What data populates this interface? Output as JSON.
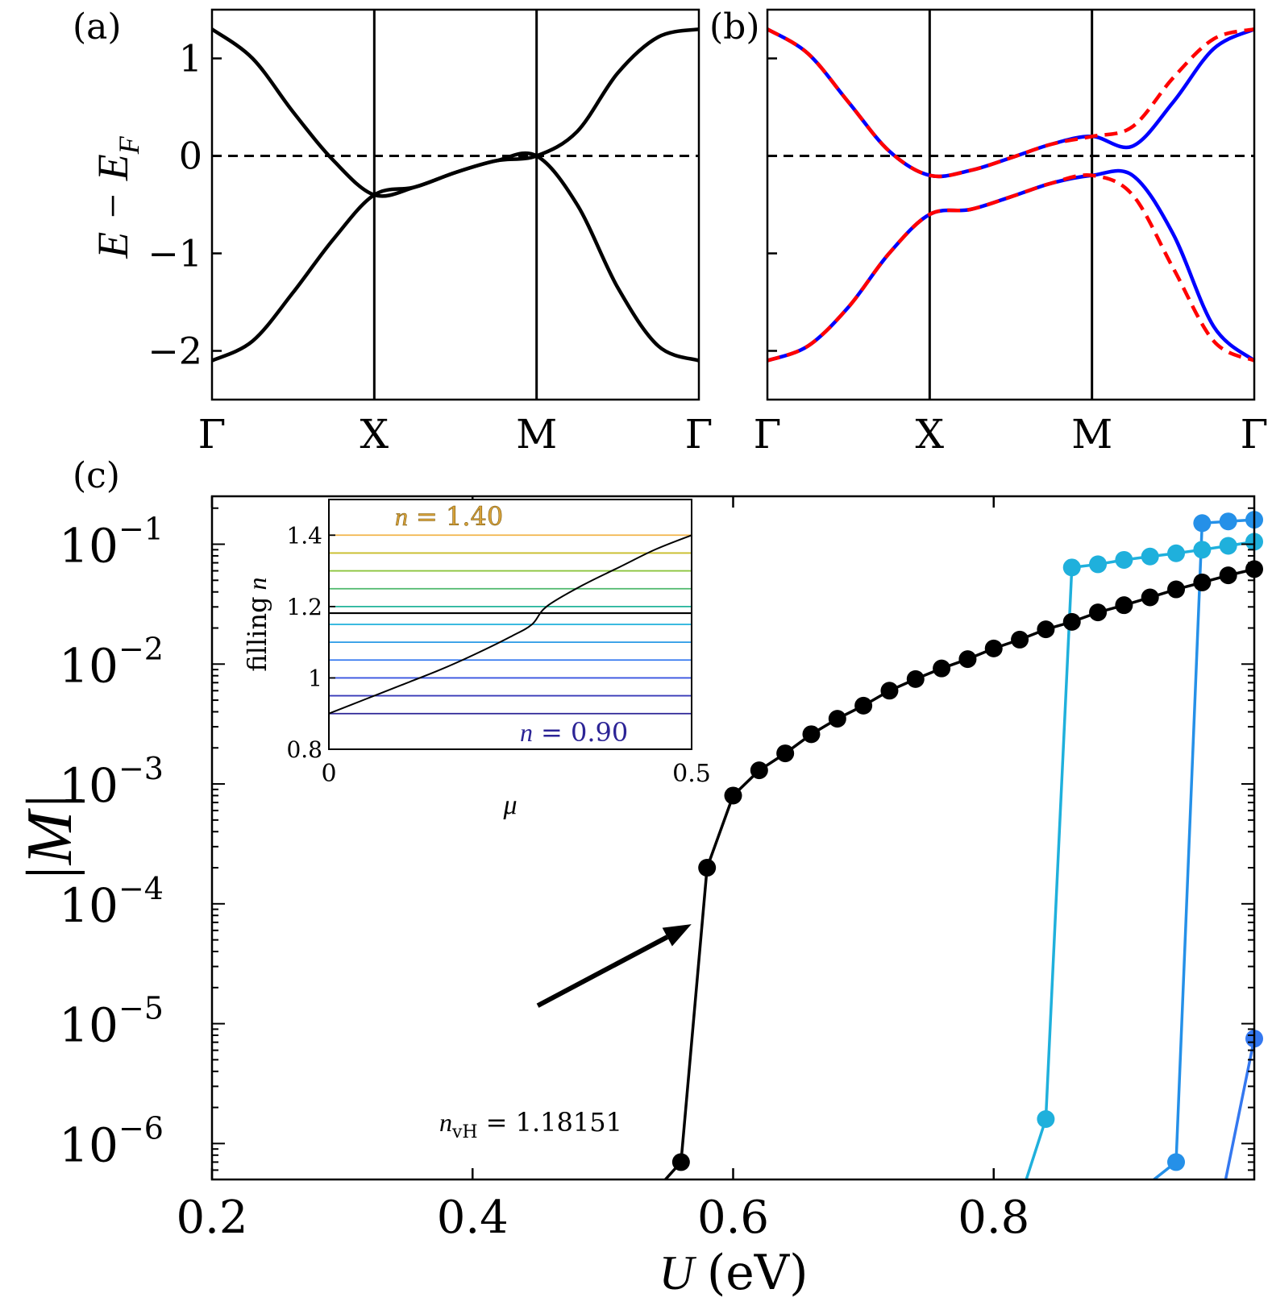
{
  "figure": {
    "panel_labels": [
      "(a)",
      "(b)",
      "(c)"
    ]
  },
  "chart_data": [
    {
      "id": "a",
      "type": "line",
      "ylabel": "E − E_F",
      "ylabel_parts": {
        "main": "E − E",
        "sub": "F"
      },
      "k_labels": [
        "Γ",
        "X",
        "M",
        "Γ"
      ],
      "ylim": [
        -2.5,
        1.5
      ],
      "yticks": [
        1,
        0,
        -1,
        -2
      ],
      "ytick_labels": [
        "1",
        "0",
        "−1",
        "−2"
      ],
      "fermi_level": 0,
      "band_points": {
        "x": [
          0,
          0.25,
          0.5,
          0.75,
          1,
          1.25,
          1.5,
          1.75,
          2,
          2.25,
          2.5,
          2.75,
          3
        ],
        "upper": [
          1.3,
          1.0,
          0.45,
          -0.05,
          -0.4,
          -0.32,
          -0.17,
          -0.05,
          0.0,
          0.25,
          0.85,
          1.22,
          1.3
        ],
        "lower": [
          -2.1,
          -1.9,
          -1.4,
          -0.85,
          -0.4,
          -0.32,
          -0.17,
          -0.05,
          0.0,
          -0.5,
          -1.35,
          -1.95,
          -2.1
        ]
      },
      "series": [
        {
          "color": "#000000",
          "style": "solid"
        }
      ]
    },
    {
      "id": "b",
      "type": "line",
      "k_labels": [
        "Γ",
        "X",
        "M",
        "Γ"
      ],
      "ylim": [
        -2.5,
        1.5
      ],
      "fermi_level": 0,
      "band_points": {
        "x": [
          0,
          0.25,
          0.5,
          0.75,
          1,
          1.25,
          1.5,
          1.75,
          2,
          2.25,
          2.5,
          2.75,
          3
        ],
        "upper_blue": [
          1.3,
          1.05,
          0.55,
          0.05,
          -0.2,
          -0.15,
          -0.02,
          0.12,
          0.2,
          0.1,
          0.55,
          1.1,
          1.3
        ],
        "upper_red": [
          1.3,
          1.05,
          0.55,
          0.05,
          -0.2,
          -0.15,
          -0.02,
          0.12,
          0.2,
          0.3,
          0.8,
          1.2,
          1.3
        ],
        "lower_blue": [
          -2.1,
          -1.95,
          -1.55,
          -1.0,
          -0.6,
          -0.55,
          -0.42,
          -0.28,
          -0.2,
          -0.2,
          -0.8,
          -1.75,
          -2.1
        ],
        "lower_red": [
          -2.1,
          -1.95,
          -1.55,
          -1.0,
          -0.6,
          -0.55,
          -0.42,
          -0.28,
          -0.2,
          -0.4,
          -1.15,
          -1.9,
          -2.1
        ]
      },
      "series": [
        {
          "color": "#0000ff",
          "style": "solid"
        },
        {
          "color": "#ff0000",
          "style": "dashed"
        }
      ]
    },
    {
      "id": "c",
      "type": "scatter",
      "xlabel": "U (eV)",
      "xlabel_parts": {
        "var": "U",
        "unit": "(eV)"
      },
      "ylabel": "|M|",
      "xlim": [
        0.2,
        1.0
      ],
      "ylim_log10": [
        -6.3,
        -0.6
      ],
      "yscale": "log",
      "xticks": [
        0.2,
        0.4,
        0.6,
        0.8
      ],
      "xtick_labels": [
        "0.2",
        "0.4",
        "0.6",
        "0.8"
      ],
      "yticks_log10": [
        -1,
        -2,
        -3,
        -4,
        -5,
        -6
      ],
      "ytick_labels": [
        {
          "base": "10",
          "exp": "−1"
        },
        {
          "base": "10",
          "exp": "−2"
        },
        {
          "base": "10",
          "exp": "−3"
        },
        {
          "base": "10",
          "exp": "−4"
        },
        {
          "base": "10",
          "exp": "−5"
        },
        {
          "base": "10",
          "exp": "−6"
        }
      ],
      "series": [
        {
          "color": "#000000",
          "x": [
            0.54,
            0.56,
            0.58,
            0.6,
            0.62,
            0.64,
            0.66,
            0.68,
            0.7,
            0.72,
            0.74,
            0.76,
            0.78,
            0.8,
            0.82,
            0.84,
            0.86,
            0.88,
            0.9,
            0.92,
            0.94,
            0.96,
            0.98,
            1.0
          ],
          "y": [
            null,
            7e-07,
            0.0002,
            0.0008,
            0.0013,
            0.0018,
            0.0026,
            0.0035,
            0.0045,
            0.006,
            0.0075,
            0.0092,
            0.011,
            0.0135,
            0.016,
            0.0195,
            0.0225,
            0.027,
            0.031,
            0.036,
            0.042,
            0.048,
            0.055,
            0.062
          ],
          "line_from": {
            "x": 0.548,
            "log10y": -6.3
          }
        },
        {
          "color": "#1fb0dc",
          "x": [
            0.84,
            0.86,
            0.88,
            0.9,
            0.92,
            0.94,
            0.96,
            0.98,
            1.0
          ],
          "y": [
            1.6e-06,
            0.064,
            0.068,
            0.074,
            0.079,
            0.084,
            0.09,
            0.097,
            0.105
          ],
          "line_from": {
            "x": 0.825,
            "log10y": -6.3
          }
        },
        {
          "color": "#2590e8",
          "x": [
            0.94,
            0.96,
            0.98,
            1.0
          ],
          "y": [
            7e-07,
            0.15,
            0.155,
            0.16
          ],
          "line_from": {
            "x": 0.923,
            "log10y": -6.3
          }
        },
        {
          "color": "#3478f0",
          "x": [
            1.0
          ],
          "y": [
            7.5e-06
          ],
          "line_from": {
            "x": 0.978,
            "log10y": -6.3
          }
        }
      ],
      "annotation": {
        "text_var": "n",
        "text_sub": "vH",
        "text_value": "= 1.18151",
        "arrow_tail": {
          "x": 0.45,
          "log10y": -4.85
        },
        "arrow_head": {
          "x": 0.568,
          "log10y": -4.17
        }
      },
      "inset": {
        "type": "line",
        "xlabel": "μ",
        "ylabel": "filling n",
        "ylabel_parts": {
          "text": "filling",
          "var": "n"
        },
        "xlim": [
          0,
          0.5
        ],
        "ylim": [
          0.8,
          1.5
        ],
        "xticks": [
          0,
          0.5
        ],
        "xtick_labels": [
          "0",
          "0.5"
        ],
        "yticks": [
          1.4,
          1.2,
          1.0,
          0.8
        ],
        "ytick_labels": [
          "1.4",
          "1.2",
          "1",
          "0.8"
        ],
        "top_label": {
          "var": "n",
          "value": "= 1.40"
        },
        "bottom_label": {
          "var": "n",
          "value": "= 0.90"
        },
        "filling_levels": [
          {
            "n": 1.4,
            "color": "#f2b54a"
          },
          {
            "n": 1.35,
            "color": "#c9bd2a"
          },
          {
            "n": 1.3,
            "color": "#8cc43e"
          },
          {
            "n": 1.25,
            "color": "#4cb86a"
          },
          {
            "n": 1.2,
            "color": "#22b39a"
          },
          {
            "n": 1.18151,
            "color": "#000000"
          },
          {
            "n": 1.15,
            "color": "#1fb0dc"
          },
          {
            "n": 1.1,
            "color": "#2a9ae6"
          },
          {
            "n": 1.05,
            "color": "#3478f0"
          },
          {
            "n": 1.0,
            "color": "#3a55e0"
          },
          {
            "n": 0.95,
            "color": "#383ab8"
          },
          {
            "n": 0.9,
            "color": "#2c2496"
          }
        ],
        "curve": {
          "x": [
            0,
            0.05,
            0.1,
            0.15,
            0.2,
            0.25,
            0.28,
            0.3,
            0.35,
            0.4,
            0.45,
            0.5
          ],
          "y": [
            0.9,
            0.94,
            0.98,
            1.02,
            1.065,
            1.115,
            1.15,
            1.2,
            1.26,
            1.31,
            1.36,
            1.4
          ]
        }
      }
    }
  ]
}
